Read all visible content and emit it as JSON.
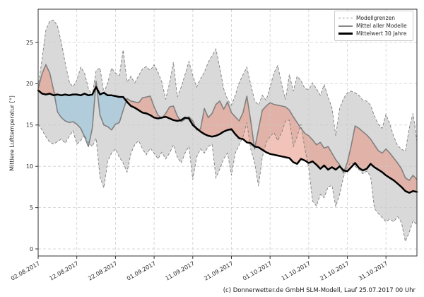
{
  "footer": {
    "text": "(c) Donnerwetter.de GmbH SLM-Modell, Lauf 25.07.2017 00 Uhr"
  },
  "chart_data": {
    "type": "line",
    "title": "",
    "ylabel": "Mittlere Lufttemperatur [°]",
    "grid": true,
    "legend_position": "upper right",
    "x_start_date": "02.08.2017",
    "days_total": 99,
    "x_tick_days": [
      0,
      10,
      20,
      30,
      40,
      50,
      60,
      70,
      80,
      90
    ],
    "x_tick_labels": [
      "02.08.2017",
      "12.08.2017",
      "22.08.2017",
      "01.09.2017",
      "11.09.2017",
      "21.09.2017",
      "01.10.2017",
      "11.10.2017",
      "21.10.2017",
      "31.10.2017"
    ],
    "y_ticks": [
      0,
      5,
      10,
      15,
      20,
      25
    ],
    "y_range": [
      -0.9,
      29.0
    ],
    "legend": [
      {
        "label": "Modellgrenzen",
        "style": "dashed-gray"
      },
      {
        "label": "Mittel aller Modelle",
        "style": "solid-gray"
      },
      {
        "label": "Mittelwert 30 Jahre",
        "style": "solid-black"
      }
    ],
    "colors": {
      "band_fill": "#d9d9d9",
      "bound_line": "#7f7f7f",
      "model_mean_line": "#808080",
      "mean_30y_line": "#000000",
      "warm_fill": "#e8937f",
      "cold_fill": "#8fc3dd",
      "fill_opacity": 0.55,
      "grid": "#c9c9c9",
      "frame": "#333333",
      "tick_text": "#262626"
    },
    "series": [
      {
        "name": "Modellgrenzen (oben)",
        "role": "upper_bound",
        "values": [
          19.6,
          23.0,
          26.5,
          27.6,
          27.7,
          27.0,
          25.0,
          22.5,
          20.3,
          19.6,
          20.4,
          22.0,
          21.3,
          19.4,
          18.6,
          21.6,
          21.9,
          18.9,
          20.1,
          21.9,
          21.3,
          21.0,
          24.1,
          20.2,
          20.9,
          20.1,
          21.0,
          21.8,
          22.1,
          21.6,
          22.3,
          21.4,
          20.2,
          18.1,
          20.1,
          22.6,
          18.4,
          19.6,
          21.1,
          22.7,
          21.0,
          19.6,
          20.6,
          21.4,
          22.6,
          23.4,
          24.2,
          21.9,
          19.4,
          18.1,
          17.4,
          18.6,
          20.1,
          21.1,
          22.0,
          19.9,
          18.0,
          17.4,
          18.6,
          18.0,
          19.6,
          21.3,
          22.2,
          19.9,
          18.1,
          21.1,
          19.1,
          20.9,
          20.4,
          19.4,
          19.3,
          20.1,
          19.4,
          18.6,
          19.9,
          18.4,
          17.1,
          13.7,
          17.0,
          18.2,
          18.9,
          19.1,
          18.9,
          18.6,
          18.0,
          17.9,
          17.4,
          16.1,
          15.1,
          14.6,
          16.3,
          15.1,
          13.6,
          12.5,
          12.1,
          11.8,
          14.6,
          16.4,
          13.0
        ]
      },
      {
        "name": "Modellgrenzen (unten)",
        "role": "lower_bound",
        "values": [
          15.1,
          14.4,
          13.6,
          12.9,
          12.7,
          13.0,
          13.3,
          12.8,
          13.6,
          14.3,
          12.7,
          13.1,
          13.8,
          12.9,
          12.4,
          13.4,
          8.7,
          7.4,
          10.6,
          11.6,
          12.1,
          11.1,
          10.4,
          9.3,
          11.6,
          12.6,
          13.1,
          12.1,
          11.4,
          12.2,
          11.6,
          10.9,
          11.7,
          10.9,
          11.6,
          12.6,
          11.1,
          10.4,
          11.6,
          12.4,
          8.4,
          11.1,
          12.1,
          11.6,
          12.4,
          12.7,
          8.6,
          9.7,
          10.9,
          11.6,
          8.9,
          11.6,
          12.6,
          13.6,
          15.3,
          12.1,
          10.4,
          7.6,
          11.1,
          12.9,
          13.6,
          14.1,
          13.1,
          14.1,
          15.5,
          15.6,
          12.4,
          13.6,
          15.1,
          12.1,
          9.8,
          5.8,
          5.2,
          6.6,
          6.2,
          7.5,
          7.7,
          5.1,
          6.6,
          8.7,
          9.9,
          10.5,
          10.0,
          9.6,
          9.1,
          9.4,
          8.8,
          4.9,
          4.3,
          3.8,
          3.3,
          3.6,
          3.3,
          3.9,
          3.2,
          0.9,
          2.0,
          3.4,
          2.9
        ]
      },
      {
        "name": "Mittel aller Modelle",
        "role": "model_mean",
        "values": [
          19.4,
          21.2,
          22.3,
          21.3,
          19.2,
          16.6,
          15.9,
          15.5,
          15.3,
          15.4,
          15.1,
          14.6,
          13.6,
          12.4,
          14.6,
          20.3,
          16.2,
          15.0,
          14.8,
          14.4,
          15.1,
          15.3,
          16.8,
          18.2,
          17.9,
          17.8,
          17.7,
          18.3,
          18.4,
          18.5,
          17.2,
          16.2,
          15.8,
          16.4,
          17.2,
          17.3,
          16.1,
          15.4,
          15.7,
          16.0,
          15.5,
          14.4,
          14.5,
          17.0,
          15.9,
          16.4,
          17.5,
          17.9,
          16.9,
          17.8,
          16.5,
          16.0,
          15.5,
          16.5,
          18.5,
          15.5,
          12.1,
          14.5,
          16.8,
          17.3,
          17.7,
          17.5,
          17.4,
          17.3,
          17.2,
          16.8,
          16.0,
          15.3,
          14.6,
          14.0,
          13.7,
          13.2,
          12.6,
          12.9,
          12.2,
          12.4,
          11.6,
          10.8,
          10.2,
          9.2,
          10.5,
          12.5,
          14.9,
          14.6,
          14.2,
          13.8,
          13.3,
          12.6,
          11.9,
          11.6,
          12.1,
          11.6,
          11.0,
          10.4,
          9.7,
          8.6,
          8.3,
          8.9,
          8.4
        ]
      },
      {
        "name": "Mittelwert 30 Jahre",
        "role": "mean_30y",
        "values": [
          19.2,
          18.8,
          18.7,
          18.8,
          18.6,
          18.7,
          18.6,
          18.7,
          18.6,
          18.7,
          18.7,
          18.6,
          18.8,
          18.6,
          18.7,
          19.6,
          18.7,
          18.9,
          18.6,
          18.6,
          18.5,
          18.4,
          18.4,
          17.8,
          17.3,
          17.1,
          16.8,
          16.5,
          16.4,
          16.2,
          15.9,
          15.8,
          15.9,
          16.0,
          15.8,
          15.6,
          15.5,
          15.6,
          15.9,
          15.8,
          15.0,
          14.6,
          14.2,
          13.9,
          13.7,
          13.6,
          13.7,
          13.9,
          14.2,
          14.4,
          14.5,
          13.9,
          13.4,
          13.3,
          12.9,
          12.8,
          12.4,
          12.3,
          12.0,
          11.7,
          11.5,
          11.4,
          11.3,
          11.2,
          11.1,
          11.0,
          10.5,
          10.3,
          10.9,
          10.7,
          10.4,
          10.6,
          10.2,
          9.7,
          10.1,
          9.6,
          9.9,
          9.6,
          10.0,
          9.5,
          9.4,
          9.9,
          10.4,
          9.8,
          9.5,
          9.7,
          10.3,
          9.9,
          9.6,
          9.3,
          8.9,
          8.6,
          8.3,
          7.9,
          7.5,
          7.0,
          6.8,
          7.0,
          6.9
        ]
      }
    ]
  }
}
